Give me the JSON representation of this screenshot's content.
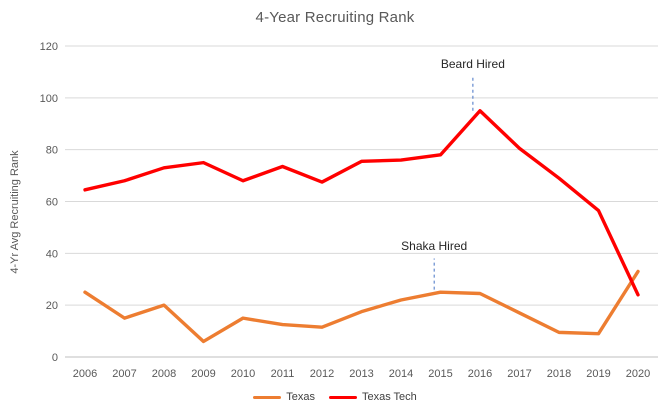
{
  "chart_data": {
    "type": "line",
    "title": "4-Year Recruiting Rank",
    "xlabel": "",
    "ylabel": "4-Yr Avg Recruiting Rank",
    "x": [
      2006,
      2007,
      2008,
      2009,
      2010,
      2011,
      2012,
      2013,
      2014,
      2015,
      2016,
      2017,
      2018,
      2019,
      2020
    ],
    "x_labels": [
      "2006",
      "2007",
      "2008",
      "2009",
      "2010",
      "2011",
      "2012",
      "2013",
      "2014",
      "2015",
      "2016",
      "2017",
      "2018",
      "2019",
      "2020"
    ],
    "series": [
      {
        "name": "Texas",
        "color": "#ED7D31",
        "values": [
          25,
          15,
          20,
          6,
          15,
          12.5,
          11.5,
          17.5,
          22,
          25,
          24.5,
          17,
          9.5,
          9,
          33
        ]
      },
      {
        "name": "Texas Tech",
        "color": "#FF0000",
        "values": [
          64.5,
          68,
          73,
          75,
          68,
          73.5,
          67.5,
          75.5,
          76,
          78,
          95,
          80.5,
          69,
          56.5,
          24
        ]
      }
    ],
    "ylim": [
      0,
      120
    ],
    "y_ticks": [
      0,
      20,
      40,
      60,
      80,
      100,
      120
    ],
    "grid": true,
    "legend_position": "bottom",
    "annotations": [
      {
        "label": "Shaka Hired",
        "year": 2014.84,
        "value_from": 26,
        "value_to": 38,
        "points_to_series": "Texas"
      },
      {
        "label": "Beard Hired",
        "year": 2015.82,
        "value_from": 95,
        "value_to": 108,
        "points_to_series": "Texas Tech"
      }
    ],
    "annotation_line_color": "#4472C4",
    "gridline_color": "#D9D9D9",
    "axis_line_color": "#BFBFBF",
    "tick_label_color": "#595959"
  }
}
